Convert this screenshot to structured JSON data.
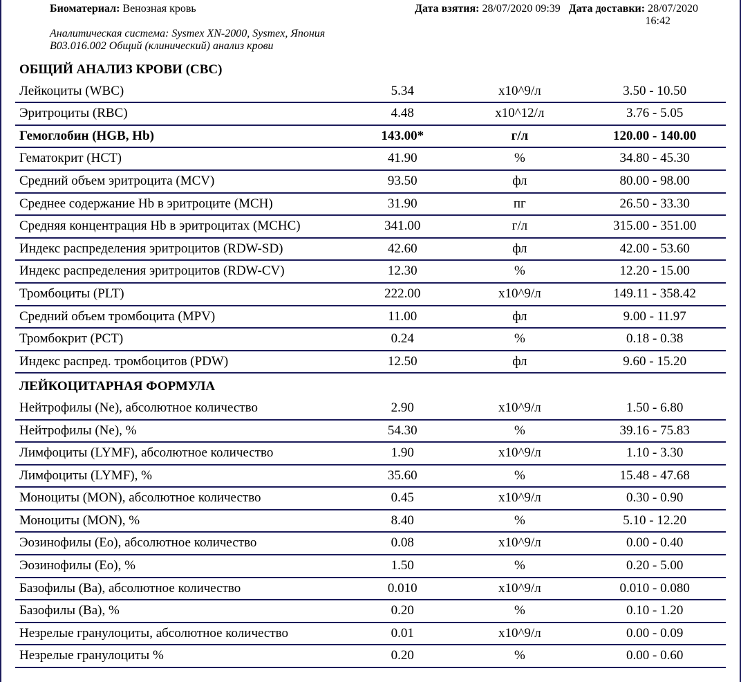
{
  "colors": {
    "border": "#1a1a5a",
    "text": "#000000",
    "background": "#ffffff"
  },
  "header": {
    "biomaterial_label": "Биоматериал:",
    "biomaterial_value": "Венозная кровь",
    "date_taken_label": "Дата взятия:",
    "date_taken_value": "28/07/2020 09:39",
    "date_delivery_label": "Дата доставки:",
    "date_delivery_value": "28/07/2020",
    "date_delivery_time": "16:42",
    "analytic_system": "Аналитическая система: Sysmex XN-2000, Sysmex, Япония",
    "code_line": "В03.016.002 Общий (клинический) анализ крови"
  },
  "sections": [
    {
      "type": "section",
      "title": "ОБЩИЙ АНАЛИЗ КРОВИ (CBC)"
    },
    {
      "type": "row",
      "name": "Лейкоциты (WBC)",
      "value": "5.34",
      "unit": "x10^9/л",
      "range": "3.50 - 10.50"
    },
    {
      "type": "row",
      "name": "Эритроциты (RBC)",
      "value": "4.48",
      "unit": "x10^12/л",
      "range": "3.76 - 5.05"
    },
    {
      "type": "row",
      "bold": true,
      "name": "Гемоглобин (HGB, Hb)",
      "value": "143.00*",
      "unit": "г/л",
      "range": "120.00 - 140.00"
    },
    {
      "type": "row",
      "name": "Гематокрит (HCT)",
      "value": "41.90",
      "unit": "%",
      "range": "34.80 - 45.30"
    },
    {
      "type": "row",
      "name": "Средний объем эритроцита (MCV)",
      "value": "93.50",
      "unit": "фл",
      "range": "80.00 - 98.00"
    },
    {
      "type": "row",
      "name": "Среднее содержание Hb в эритроците (MCH)",
      "value": "31.90",
      "unit": "пг",
      "range": "26.50 - 33.30"
    },
    {
      "type": "row",
      "name": "Средняя концентрация Hb в эритроцитах (MCHC)",
      "value": "341.00",
      "unit": "г/л",
      "range": "315.00 - 351.00"
    },
    {
      "type": "row",
      "name": "Индекс распределения эритроцитов (RDW-SD)",
      "value": "42.60",
      "unit": "фл",
      "range": "42.00 - 53.60"
    },
    {
      "type": "row",
      "name": "Индекс распределения эритроцитов (RDW-CV)",
      "value": "12.30",
      "unit": "%",
      "range": "12.20 - 15.00"
    },
    {
      "type": "row",
      "name": "Тромбоциты (PLT)",
      "value": "222.00",
      "unit": "x10^9/л",
      "range": "149.11 - 358.42"
    },
    {
      "type": "row",
      "name": "Средний объем тромбоцита (MPV)",
      "value": "11.00",
      "unit": "фл",
      "range": "9.00 - 11.97"
    },
    {
      "type": "row",
      "name": "Тромбокрит (PCT)",
      "value": "0.24",
      "unit": "%",
      "range": "0.18 - 0.38"
    },
    {
      "type": "row",
      "name": "Индекс распред. тромбоцитов (PDW)",
      "value": "12.50",
      "unit": "фл",
      "range": "9.60 - 15.20"
    },
    {
      "type": "section",
      "title": "ЛЕЙКОЦИТАРНАЯ ФОРМУЛА"
    },
    {
      "type": "row",
      "nosectionborder": true,
      "name": "Нейтрофилы (Ne), абсолютное количество",
      "value": "2.90",
      "unit": "x10^9/л",
      "range": "1.50 - 6.80"
    },
    {
      "type": "row",
      "name": "Нейтрофилы (Ne), %",
      "value": "54.30",
      "unit": "%",
      "range": "39.16 - 75.83"
    },
    {
      "type": "row",
      "name": "Лимфоциты (LYMF), абсолютное количество",
      "value": "1.90",
      "unit": "x10^9/л",
      "range": "1.10 - 3.30"
    },
    {
      "type": "row",
      "name": "Лимфоциты (LYMF), %",
      "value": "35.60",
      "unit": "%",
      "range": "15.48 - 47.68"
    },
    {
      "type": "row",
      "name": "Моноциты (MON), абсолютное количество",
      "value": "0.45",
      "unit": "x10^9/л",
      "range": "0.30 - 0.90"
    },
    {
      "type": "row",
      "name": "Моноциты (MON), %",
      "value": "8.40",
      "unit": "%",
      "range": "5.10 - 12.20"
    },
    {
      "type": "row",
      "name": "Эозинофилы (Eo), абсолютное количество",
      "value": "0.08",
      "unit": "x10^9/л",
      "range": "0.00 - 0.40"
    },
    {
      "type": "row",
      "name": "Эозинофилы (Eo), %",
      "value": "1.50",
      "unit": "%",
      "range": "0.20 - 5.00"
    },
    {
      "type": "row",
      "name": "Базофилы (Ba), абсолютное количество",
      "value": "0.010",
      "unit": "x10^9/л",
      "range": "0.010 - 0.080"
    },
    {
      "type": "row",
      "name": "Базофилы (Ba), %",
      "value": "0.20",
      "unit": "%",
      "range": "0.10 - 1.20"
    },
    {
      "type": "row",
      "name": "Незрелые гранулоциты, абсолютное количество",
      "value": "0.01",
      "unit": "x10^9/л",
      "range": "0.00 - 0.09"
    },
    {
      "type": "row",
      "name": "Незрелые гранулоциты %",
      "value": "0.20",
      "unit": "%",
      "range": "0.00 - 0.60"
    }
  ]
}
